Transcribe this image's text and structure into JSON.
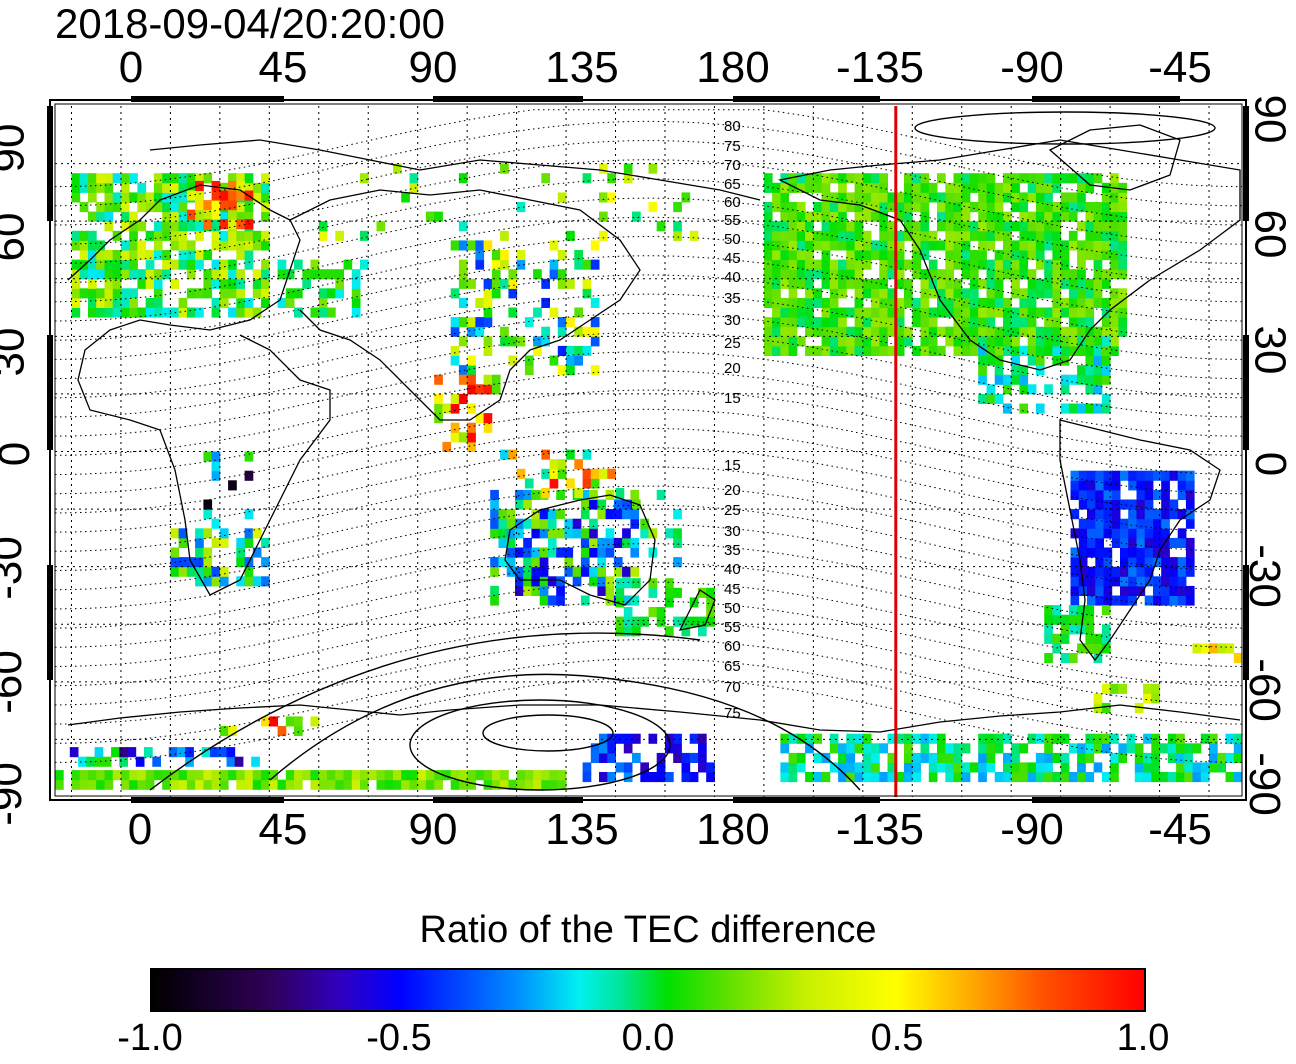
{
  "title": "2018-09-04/20:20:00",
  "lon_ticks_top": [
    "0",
    "45",
    "90",
    "135",
    "180",
    "-135",
    "-90",
    "-45"
  ],
  "lon_ticks_bottom": [
    "0",
    "45",
    "90",
    "135",
    "180",
    "-135",
    "-90",
    "-45"
  ],
  "lat_ticks_left": [
    "90",
    "60",
    "30",
    "0",
    "-30",
    "-60",
    "-90"
  ],
  "lat_ticks_right": [
    "90",
    "60",
    "30",
    "0",
    "-30",
    "-60",
    "-90"
  ],
  "mlat_labels_north": [
    "80",
    "75",
    "70",
    "65",
    "60",
    "55",
    "50",
    "45",
    "40",
    "35",
    "30",
    "25",
    "20",
    "15"
  ],
  "mlat_labels_south": [
    "15",
    "20",
    "25",
    "30",
    "35",
    "40",
    "45",
    "50",
    "55",
    "60",
    "65",
    "70",
    "75"
  ],
  "colorbar": {
    "title": "Ratio of the TEC difference",
    "labels": [
      "-1.0",
      "-0.5",
      "0.0",
      "0.5",
      "1.0"
    ],
    "range": [
      -1.0,
      1.0
    ]
  },
  "map": {
    "lon_range": [
      -20,
      340
    ],
    "lat_range": [
      -90,
      90
    ],
    "terminator_lon": -125,
    "terminator_color": "#e00000",
    "grid": "dotted"
  }
}
